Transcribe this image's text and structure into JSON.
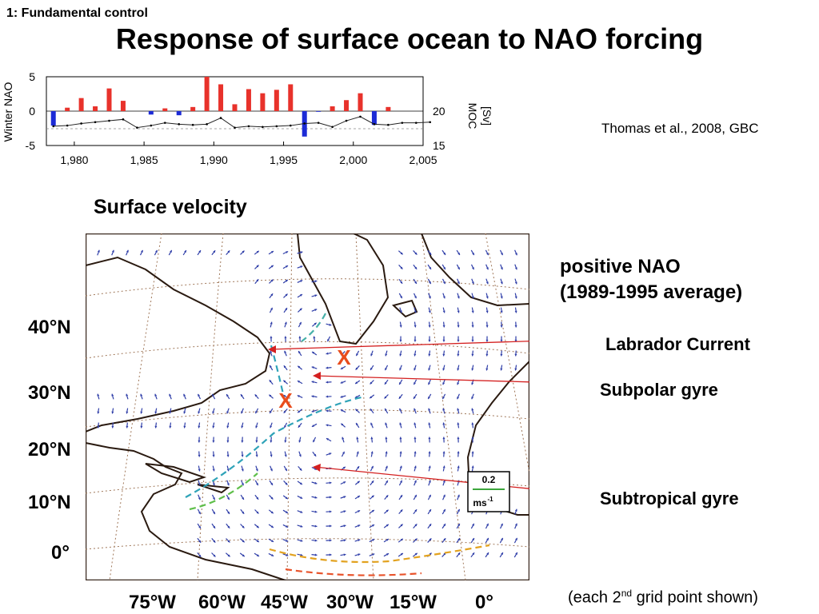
{
  "header": {
    "section_label": "1: Fundamental control",
    "title": "Response of surface ocean to NAO forcing"
  },
  "citation": "Thomas et al., 2008, GBC",
  "subtitle": "Surface velocity",
  "map": {
    "panel_title_line1": "positive NAO",
    "panel_title_line2": "(1989-1995 average)",
    "callouts": [
      "Labrador Current",
      "Subpolar gyre",
      "Subtropical gyre"
    ],
    "marker": "X",
    "lat_labels": [
      "40°N",
      "30°N",
      "20°N",
      "10°N",
      "0°"
    ],
    "lon_labels": [
      "75°W",
      "60°W",
      "45°W",
      "30°W",
      "15°W",
      "0°"
    ],
    "legend": {
      "value": "0.2",
      "unit": "ms",
      "unit_exp": "-1"
    },
    "footnote_pre": "(each 2",
    "footnote_sup": "nd",
    "footnote_post": " grid point shown)"
  },
  "colors": {
    "positive": "#e8322b",
    "negative": "#1c2bd6",
    "arrow": "#2f3ea8",
    "annotation": "#d42020"
  },
  "chart_data": {
    "type": "bar",
    "left_axis_label": "Winter NAO",
    "right_axis_label_line1": "MOC",
    "right_axis_label_line2": "[Sv]",
    "xlim": [
      1978,
      2005
    ],
    "ylim": [
      -5,
      5
    ],
    "y2lim": [
      15,
      25
    ],
    "x_ticks": [
      "1,980",
      "1,985",
      "1,990",
      "1,995",
      "2,000",
      "2,005"
    ],
    "y_ticks": [
      "5",
      "0",
      "-5"
    ],
    "y2_ticks": [
      "20",
      "15"
    ],
    "series": [
      {
        "name": "Winter NAO",
        "x": [
          1978,
          1979,
          1980,
          1981,
          1982,
          1983,
          1984,
          1985,
          1986,
          1987,
          1988,
          1989,
          1990,
          1991,
          1992,
          1993,
          1994,
          1995,
          1996,
          1997,
          1998,
          1999,
          2000,
          2001,
          2002,
          2003
        ],
        "values": [
          -2.1,
          0.5,
          1.9,
          0.7,
          3.3,
          1.5,
          0.0,
          -0.5,
          0.4,
          -0.6,
          0.6,
          5.0,
          3.9,
          1.0,
          3.2,
          2.6,
          3.1,
          3.9,
          -3.7,
          -0.1,
          0.7,
          1.6,
          2.6,
          -2.0,
          0.6,
          0.0
        ]
      },
      {
        "name": "MOC",
        "x": [
          1978,
          1979,
          1980,
          1981,
          1982,
          1983,
          1984,
          1985,
          1986,
          1987,
          1988,
          1989,
          1990,
          1991,
          1992,
          1993,
          1994,
          1995,
          1996,
          1997,
          1998,
          1999,
          2000,
          2001,
          2002,
          2003,
          2004,
          2005
        ],
        "values": [
          17.8,
          17.9,
          18.2,
          18.4,
          18.6,
          18.8,
          17.6,
          17.9,
          18.3,
          18.1,
          18.0,
          18.1,
          19.0,
          17.6,
          17.8,
          17.7,
          17.8,
          17.9,
          18.2,
          18.3,
          17.7,
          18.6,
          19.2,
          18.1,
          18.0,
          18.3,
          18.3,
          18.4
        ]
      }
    ]
  }
}
